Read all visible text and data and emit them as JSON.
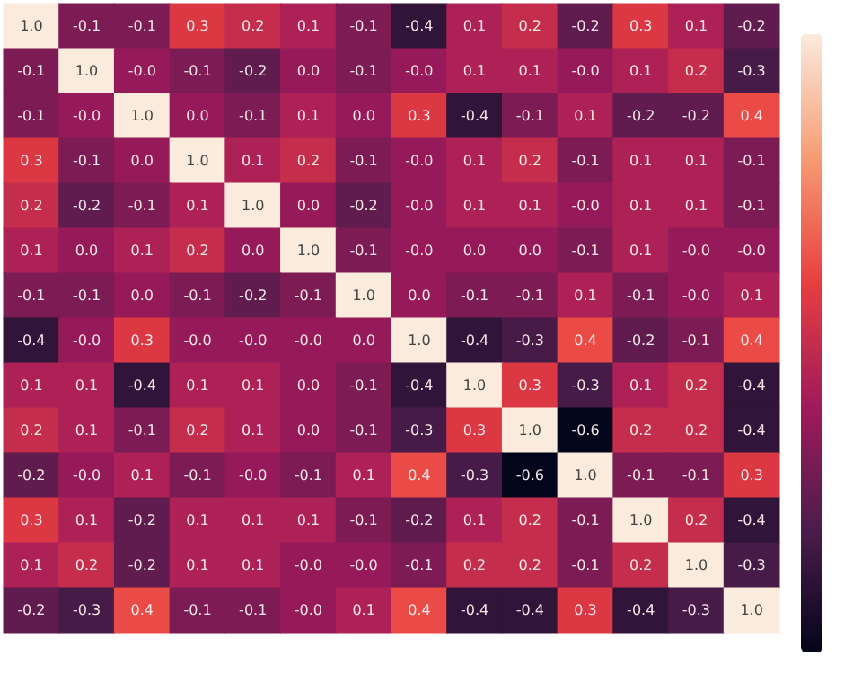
{
  "chart_data": {
    "type": "heatmap",
    "categories": [
      null,
      null,
      null,
      null,
      null,
      null,
      null,
      null,
      null,
      null,
      null,
      null,
      null,
      null
    ],
    "y_categories": [
      null,
      null,
      null,
      null,
      null,
      null,
      null,
      null,
      null,
      null,
      null,
      null,
      null,
      null
    ],
    "cells": [
      [
        1.0,
        -0.1,
        -0.1,
        0.3,
        0.2,
        0.1,
        -0.1,
        -0.4,
        0.1,
        0.2,
        -0.2,
        0.3,
        0.1,
        -0.2
      ],
      [
        -0.1,
        1.0,
        -0.0,
        -0.1,
        -0.2,
        0.0,
        -0.1,
        -0.0,
        0.1,
        0.1,
        -0.0,
        0.1,
        0.2,
        -0.3
      ],
      [
        -0.1,
        -0.0,
        1.0,
        0.0,
        -0.1,
        0.1,
        0.0,
        0.3,
        -0.4,
        -0.1,
        0.1,
        -0.2,
        -0.2,
        0.4
      ],
      [
        0.3,
        -0.1,
        0.0,
        1.0,
        0.1,
        0.2,
        -0.1,
        -0.0,
        0.1,
        0.2,
        -0.1,
        0.1,
        0.1,
        -0.1
      ],
      [
        0.2,
        -0.2,
        -0.1,
        0.1,
        1.0,
        0.0,
        -0.2,
        -0.0,
        0.1,
        0.1,
        -0.0,
        0.1,
        0.1,
        -0.1
      ],
      [
        0.1,
        0.0,
        0.1,
        0.2,
        0.0,
        1.0,
        -0.1,
        -0.0,
        0.0,
        0.0,
        -0.1,
        0.1,
        -0.0,
        -0.0
      ],
      [
        -0.1,
        -0.1,
        0.0,
        -0.1,
        -0.2,
        -0.1,
        1.0,
        0.0,
        -0.1,
        -0.1,
        0.1,
        -0.1,
        -0.0,
        0.1
      ],
      [
        -0.4,
        -0.0,
        0.3,
        -0.0,
        -0.0,
        -0.0,
        0.0,
        1.0,
        -0.4,
        -0.3,
        0.4,
        -0.2,
        -0.1,
        0.4
      ],
      [
        0.1,
        0.1,
        -0.4,
        0.1,
        0.1,
        0.0,
        -0.1,
        -0.4,
        1.0,
        0.3,
        -0.3,
        0.1,
        0.2,
        -0.4
      ],
      [
        0.2,
        0.1,
        -0.1,
        0.2,
        0.1,
        0.0,
        -0.1,
        -0.3,
        0.3,
        1.0,
        -0.6,
        0.2,
        0.2,
        -0.4
      ],
      [
        -0.2,
        -0.0,
        0.1,
        -0.1,
        -0.0,
        -0.1,
        0.1,
        0.4,
        -0.3,
        -0.6,
        1.0,
        -0.1,
        -0.1,
        0.3
      ],
      [
        0.3,
        0.1,
        -0.2,
        0.1,
        0.1,
        0.1,
        -0.1,
        -0.2,
        0.1,
        0.2,
        -0.1,
        1.0,
        0.2,
        -0.4
      ],
      [
        0.1,
        0.2,
        -0.2,
        0.1,
        0.1,
        -0.0,
        -0.0,
        -0.1,
        0.2,
        0.2,
        -0.1,
        0.2,
        1.0,
        -0.3
      ],
      [
        -0.2,
        -0.3,
        0.4,
        -0.1,
        -0.1,
        -0.0,
        0.1,
        0.4,
        -0.4,
        -0.4,
        0.3,
        -0.4,
        -0.3,
        1.0
      ]
    ],
    "cell_labels": [
      [
        "1.0",
        "-0.1",
        "-0.1",
        "0.3",
        "0.2",
        "0.1",
        "-0.1",
        "-0.4",
        "0.1",
        "0.2",
        "-0.2",
        "0.3",
        "0.1",
        "-0.2"
      ],
      [
        "-0.1",
        "1.0",
        "-0.0",
        "-0.1",
        "-0.2",
        "0.0",
        "-0.1",
        "-0.0",
        "0.1",
        "0.1",
        "-0.0",
        "0.1",
        "0.2",
        "-0.3"
      ],
      [
        "-0.1",
        "-0.0",
        "1.0",
        "0.0",
        "-0.1",
        "0.1",
        "0.0",
        "0.3",
        "-0.4",
        "-0.1",
        "0.1",
        "-0.2",
        "-0.2",
        "0.4"
      ],
      [
        "0.3",
        "-0.1",
        "0.0",
        "1.0",
        "0.1",
        "0.2",
        "-0.1",
        "-0.0",
        "0.1",
        "0.2",
        "-0.1",
        "0.1",
        "0.1",
        "-0.1"
      ],
      [
        "0.2",
        "-0.2",
        "-0.1",
        "0.1",
        "1.0",
        "0.0",
        "-0.2",
        "-0.0",
        "0.1",
        "0.1",
        "-0.0",
        "0.1",
        "0.1",
        "-0.1"
      ],
      [
        "0.1",
        "0.0",
        "0.1",
        "0.2",
        "0.0",
        "1.0",
        "-0.1",
        "-0.0",
        "0.0",
        "0.0",
        "-0.1",
        "0.1",
        "-0.0",
        "-0.0"
      ],
      [
        "-0.1",
        "-0.1",
        "0.0",
        "-0.1",
        "-0.2",
        "-0.1",
        "1.0",
        "0.0",
        "-0.1",
        "-0.1",
        "0.1",
        "-0.1",
        "-0.0",
        "0.1"
      ],
      [
        "-0.4",
        "-0.0",
        "0.3",
        "-0.0",
        "-0.0",
        "-0.0",
        "0.0",
        "1.0",
        "-0.4",
        "-0.3",
        "0.4",
        "-0.2",
        "-0.1",
        "0.4"
      ],
      [
        "0.1",
        "0.1",
        "-0.4",
        "0.1",
        "0.1",
        "0.0",
        "-0.1",
        "-0.4",
        "1.0",
        "0.3",
        "-0.3",
        "0.1",
        "0.2",
        "-0.4"
      ],
      [
        "0.2",
        "0.1",
        "-0.1",
        "0.2",
        "0.1",
        "0.0",
        "-0.1",
        "-0.3",
        "0.3",
        "1.0",
        "-0.6",
        "0.2",
        "0.2",
        "-0.4"
      ],
      [
        "-0.2",
        "-0.0",
        "0.1",
        "-0.1",
        "-0.0",
        "-0.1",
        "0.1",
        "0.4",
        "-0.3",
        "-0.6",
        "1.0",
        "-0.1",
        "-0.1",
        "0.3"
      ],
      [
        "0.3",
        "0.1",
        "-0.2",
        "0.1",
        "0.1",
        "0.1",
        "-0.1",
        "-0.2",
        "0.1",
        "0.2",
        "-0.1",
        "1.0",
        "0.2",
        "-0.4"
      ],
      [
        "0.1",
        "0.2",
        "-0.2",
        "0.1",
        "0.1",
        "-0.0",
        "-0.0",
        "-0.1",
        "0.2",
        "0.2",
        "-0.1",
        "0.2",
        "1.0",
        "-0.3"
      ],
      [
        "-0.2",
        "-0.3",
        "0.4",
        "-0.1",
        "-0.1",
        "-0.0",
        "0.1",
        "0.4",
        "-0.4",
        "-0.4",
        "0.3",
        "-0.4",
        "-0.3",
        "1.0"
      ]
    ]
  }
}
